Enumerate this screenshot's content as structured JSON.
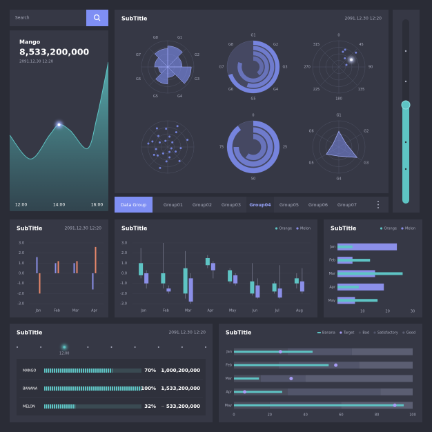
{
  "search": {
    "placeholder": "Search"
  },
  "summary": {
    "title": "Mango",
    "headline": "8,533,200,000",
    "date": "2091.12.30 12:20"
  },
  "overview": {
    "title": "SubTitle",
    "date": "2091.12.30 12:20"
  },
  "tabs": {
    "label": "Data Group",
    "items": [
      "Group01",
      "Group02",
      "Group03",
      "Group04",
      "Group05",
      "Group06",
      "Group07"
    ],
    "active": 3
  },
  "chart_data": [
    {
      "type": "area",
      "x": [
        11.4,
        12.5,
        13.5,
        14,
        14.6,
        15.5,
        16,
        16.6
      ],
      "values": [
        51,
        35,
        51,
        58,
        54,
        42,
        63,
        100
      ],
      "xlim": [
        11.4,
        16.6
      ],
      "ylim": [
        0,
        100
      ],
      "xticks": [
        {
          "value": 12,
          "label": "12:00"
        },
        {
          "value": 14,
          "label": "14:00"
        },
        {
          "value": 16,
          "label": "16:00"
        }
      ],
      "color": "#5ec4c4",
      "highlight": 3
    },
    {
      "type": "rose",
      "categories": [
        "G1",
        "G2",
        "G3",
        "G4",
        "G5",
        "G6",
        "G7",
        "G8"
      ],
      "values": [
        80,
        55,
        90,
        40,
        65,
        35,
        50,
        70
      ],
      "rlim": [
        0,
        100
      ],
      "color": "#7f8ff4"
    },
    {
      "type": "radial_bar",
      "thetaticks": [
        "G1",
        "G2",
        "G3",
        "G4",
        "G5",
        "G6",
        "G7",
        "G8"
      ],
      "values": [
        70,
        55,
        80,
        40
      ],
      "vlim": [
        0,
        100
      ],
      "color": "#7f8ff4"
    },
    {
      "type": "polar_scatter",
      "thetaticks": [
        0,
        45,
        90,
        135,
        180,
        225,
        270,
        315
      ],
      "theta": [
        20,
        35,
        60,
        50,
        75,
        15
      ],
      "r": [
        70,
        40,
        55,
        85,
        30,
        60
      ],
      "rlim": [
        0,
        100
      ],
      "color": "#7f8ff4",
      "highlight": 2
    },
    {
      "type": "polar_scatter",
      "theta": [
        10,
        30,
        45,
        70,
        95,
        120,
        140,
        160,
        185,
        200,
        215,
        240,
        260,
        280,
        300,
        320,
        340,
        355,
        25,
        110,
        170,
        230,
        290,
        330
      ],
      "r": [
        40,
        65,
        25,
        80,
        50,
        35,
        70,
        20,
        55,
        85,
        30,
        60,
        45,
        75,
        35,
        55,
        25,
        70,
        88,
        15,
        40,
        50,
        62,
        82
      ],
      "rlim": [
        0,
        100
      ],
      "color": "#7f8ff4"
    },
    {
      "type": "radial_bar",
      "thetaticks": [
        0,
        25,
        50,
        75
      ],
      "values": [
        90,
        75,
        60
      ],
      "vlim": [
        0,
        100
      ],
      "color": "#7f8ff4"
    },
    {
      "type": "radar",
      "categories": [
        "G1",
        "G2",
        "G3",
        "G4",
        "G5",
        "G6"
      ],
      "values": [
        60,
        30,
        80,
        35,
        55,
        25
      ],
      "rlim": [
        0,
        100
      ],
      "color": "#7f8ff4"
    },
    {
      "type": "bar",
      "title": "SubTitle",
      "date": "2091.12.30 12:20",
      "categories": [
        "Jan",
        "Feb",
        "Mar",
        "Apr"
      ],
      "series": [
        {
          "color": "#8b8fe8",
          "values": [
            1.6,
            1.0,
            1.0,
            -1.6
          ]
        },
        {
          "color": "#e8876b",
          "values": [
            -2.0,
            1.2,
            1.2,
            2.6
          ]
        }
      ],
      "ylim": [
        -3,
        3
      ],
      "yticks": [
        {
          "value": -3,
          "label": "-3.0"
        },
        {
          "value": -2,
          "label": "-2.0"
        },
        {
          "value": -1,
          "label": "-1.0"
        },
        {
          "value": 0,
          "label": "0.0"
        },
        {
          "value": 1,
          "label": "1.0"
        },
        {
          "value": 2,
          "label": "2.0"
        },
        {
          "value": 3,
          "label": "3.0"
        }
      ]
    },
    {
      "type": "box",
      "title": "SubTitle",
      "categories": [
        "Jan",
        "Feb",
        "Mar",
        "Apr",
        "May",
        "Jun",
        "Jul",
        "Aug"
      ],
      "series": [
        {
          "name": "Orange",
          "color": "#5ec4c4",
          "low": [
            -0.5,
            -1.5,
            -2.5,
            0.5,
            -1.0,
            -2.2,
            -2.0,
            -1.5
          ],
          "q1": [
            -0.2,
            -1.0,
            -2.0,
            0.8,
            -0.8,
            -2.0,
            -1.8,
            -1.0
          ],
          "q3": [
            1.0,
            0,
            0.5,
            1.5,
            0.3,
            -0.8,
            -1.0,
            -0.5
          ],
          "high": [
            2.5,
            3.0,
            2.2,
            1.8,
            0.5,
            1.0,
            -0.8,
            0
          ]
        },
        {
          "name": "Melon",
          "color": "#8b8fe8",
          "low": [
            -1.5,
            -2.0,
            -3.0,
            -0.5,
            -1.2,
            -2.5,
            -2.5,
            -2.0
          ],
          "q1": [
            -1.0,
            -1.8,
            -2.8,
            0.3,
            -1.0,
            -2.4,
            -2.4,
            -1.8
          ],
          "q3": [
            0,
            -1.5,
            -0.5,
            1.0,
            -0.2,
            -1.2,
            -1.5,
            -0.8
          ],
          "high": [
            0.3,
            -1.2,
            0,
            1.2,
            0,
            -0.5,
            0.8,
            0.5
          ]
        }
      ],
      "ylim": [
        -3,
        3
      ],
      "yticks": [
        {
          "value": -3,
          "label": "-3.0"
        },
        {
          "value": -2,
          "label": "-2.0"
        },
        {
          "value": -1,
          "label": "-1.0"
        },
        {
          "value": 0,
          "label": "0.0"
        },
        {
          "value": 1,
          "label": "1.0"
        },
        {
          "value": 2,
          "label": "2.0"
        },
        {
          "value": 3,
          "label": "3.0"
        }
      ]
    },
    {
      "type": "hbar",
      "title": "SubTitle",
      "categories": [
        "Jan",
        "Feb",
        "Mar",
        "Apr",
        "May"
      ],
      "series": [
        {
          "name": "Orange",
          "color": "#5ec4c4",
          "values": [
            6,
            13,
            26,
            8.5,
            16
          ]
        },
        {
          "name": "Melon",
          "color": "#8b8fe8",
          "values": [
            23.7,
            6,
            15,
            18.5,
            7
          ]
        }
      ],
      "xlim": [
        0,
        30
      ],
      "xticks": [
        10,
        20,
        30
      ]
    },
    {
      "type": "progress",
      "title": "SubTitle",
      "date": "2091.12.30 12:20",
      "timeline": "12:00",
      "categories": [
        "MANGO",
        "BANANA",
        "MELON"
      ],
      "values": [
        70,
        100,
        32
      ],
      "value_labels": [
        "70%",
        "100%",
        "32%"
      ],
      "amounts": [
        "1,000,200,000",
        "1,533,200,000",
        "533,200,000"
      ],
      "xlim": [
        0,
        100
      ],
      "color": "#5ec4c4"
    },
    {
      "type": "bullet",
      "title": "SubTitle",
      "categories": [
        "Jan",
        "Feb",
        "Mar",
        "Apr",
        "May"
      ],
      "series": [
        {
          "name": "Banana",
          "color": "#5ec4c4",
          "values": [
            44,
            53,
            14,
            27,
            95
          ]
        },
        {
          "name": "Target",
          "color": "#a79cf5",
          "values": [
            26,
            57,
            32,
            6,
            90
          ]
        }
      ],
      "ranges": [
        {
          "name": "Bad",
          "color": "#4a4d5c",
          "values": [
            30,
            25,
            15,
            30,
            20
          ]
        },
        {
          "name": "Satisfactory",
          "color": "#52556a",
          "values": [
            36,
            45,
            25,
            52,
            40
          ]
        },
        {
          "name": "Good",
          "color": "#5b5e72",
          "values": [
            34,
            30,
            60,
            18,
            40
          ]
        }
      ],
      "xlim": [
        0,
        100
      ],
      "xticks": [
        0,
        20,
        40,
        60,
        80,
        100
      ]
    }
  ]
}
